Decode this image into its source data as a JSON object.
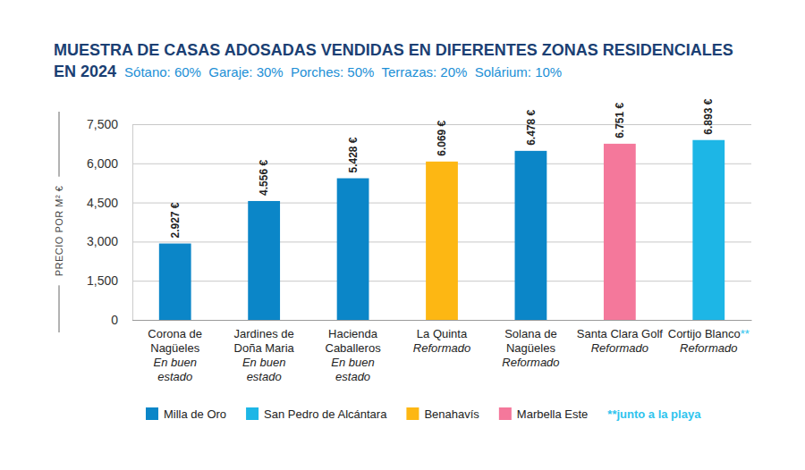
{
  "chart_data": {
    "type": "bar",
    "title": "MUESTRA DE CASAS ADOSADAS VENDIDAS EN DIFERENTES ZONAS RESIDENCIALES EN 2024",
    "subtitle": "Sótano: 60%  Garaje: 30%  Porches: 50%  Terrazas: 20%  Solárium: 10%",
    "y_label": "PRECIO POR M² €",
    "categories": [
      "Corona de Nagüeles",
      "Jardines de Doña Maria",
      "Hacienda Caballeros",
      "La Quinta",
      "Solana de Nagüeles",
      "Santa Clara Golf",
      "Cortijo Blanco**"
    ],
    "category_notes": [
      "En buen estado",
      "En buen estado",
      "En buen estado",
      "Reformado",
      "Reformado",
      "Reformado",
      "Reformado"
    ],
    "series": [
      {
        "name": "Milla de Oro",
        "color": "#0b86c8",
        "values": [
          2927,
          4556,
          5428,
          null,
          6478,
          null,
          null
        ],
        "value_labels": [
          "2.927 €",
          "4.556 €",
          "5.428 €",
          null,
          "6.478 €",
          null,
          null
        ]
      },
      {
        "name": "San Pedro de Alcántara",
        "color": "#1db6e6",
        "values": [
          null,
          null,
          null,
          null,
          null,
          null,
          6893
        ],
        "value_labels": [
          null,
          null,
          null,
          null,
          null,
          null,
          "6.893 €"
        ]
      },
      {
        "name": "Benahavís",
        "color": "#fdb713",
        "values": [
          null,
          null,
          null,
          6069,
          null,
          null,
          null
        ],
        "value_labels": [
          null,
          null,
          null,
          "6.069 €",
          null,
          null,
          null
        ]
      },
      {
        "name": "Marbella Este",
        "color": "#f4789b",
        "values": [
          null,
          null,
          null,
          null,
          null,
          6751,
          null
        ],
        "value_labels": [
          null,
          null,
          null,
          null,
          null,
          "6.751 €",
          null
        ]
      }
    ],
    "stacked": true,
    "ylim": [
      0,
      7500
    ],
    "yticks": [
      0,
      {
        "value": 1500,
        "label": "1,500"
      },
      {
        "value": 3000,
        "label": "3,000"
      },
      {
        "value": 4500,
        "label": "4,500"
      },
      {
        "value": 6000,
        "label": "6,000"
      },
      {
        "value": 7500,
        "label": "7,500"
      }
    ],
    "grid": true,
    "data_labels": true,
    "legend": "bottom",
    "note": "**junto a la playa"
  }
}
